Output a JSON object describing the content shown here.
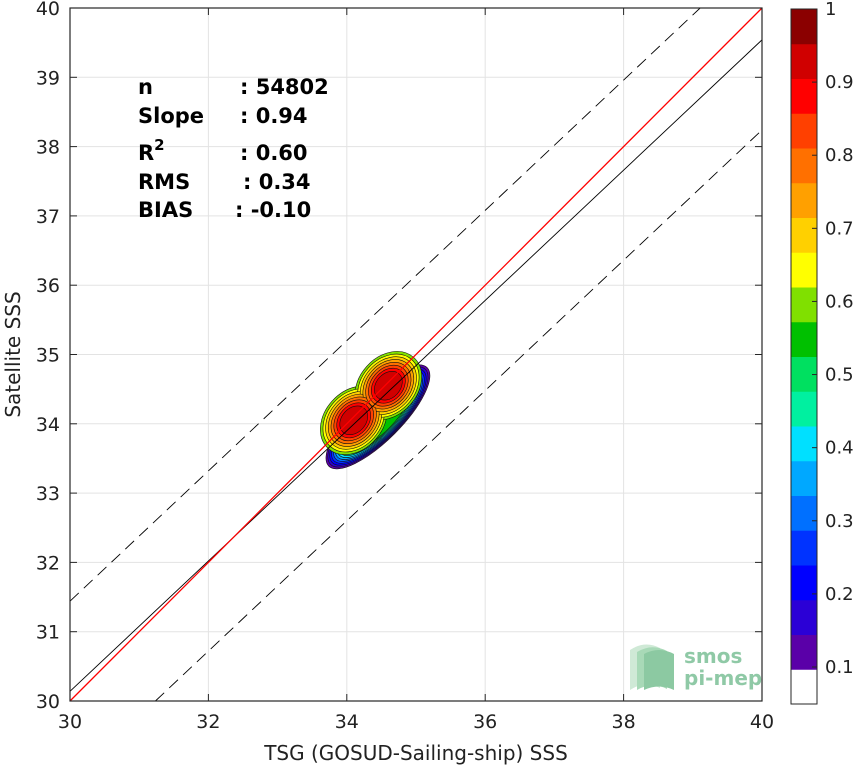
{
  "chart_data": {
    "type": "scatter",
    "subtype": "density-contour",
    "xlabel": "TSG (GOSUD-Sailing-ship) SSS",
    "ylabel": "Satellite SSS",
    "xlim": [
      30,
      40
    ],
    "ylim": [
      30,
      40
    ],
    "x_ticks": [
      "30",
      "32",
      "34",
      "36",
      "38",
      "40"
    ],
    "y_ticks": [
      "30",
      "31",
      "32",
      "33",
      "34",
      "35",
      "36",
      "37",
      "38",
      "39",
      "40"
    ],
    "grid": true,
    "stats": [
      {
        "label": "n",
        "value": ": 54802"
      },
      {
        "label": "Slope",
        "value": ": 0.94"
      },
      {
        "label": "R",
        "sup": "2",
        "value": ": 0.60"
      },
      {
        "label": "RMS",
        "value": ": 0.34"
      },
      {
        "label": "BIAS",
        "value": ": -0.10"
      }
    ],
    "reference_lines": {
      "one_to_one": {
        "slope": 1,
        "intercept": 0,
        "color": "#ff0000"
      },
      "regression": {
        "slope": 0.94,
        "intercept": 1.94,
        "color": "#000000"
      },
      "envelope_offset": 1.3
    },
    "density_peaks": [
      {
        "x": 34.1,
        "y": 34.05,
        "density": 1.0
      },
      {
        "x": 34.6,
        "y": 34.55,
        "density": 1.0
      }
    ],
    "colorbar": {
      "ticks": [
        "0.1",
        "0.2",
        "0.3",
        "0.4",
        "0.5",
        "0.6",
        "0.7",
        "0.8",
        "0.9",
        "1"
      ],
      "range": [
        0,
        1
      ],
      "colors": [
        "#ffffff",
        "#5a00a8",
        "#2b00d6",
        "#0000ff",
        "#0033ff",
        "#0070ff",
        "#00a8ff",
        "#00e0ff",
        "#00f0a0",
        "#00e060",
        "#00c000",
        "#80e000",
        "#ffff00",
        "#ffd000",
        "#ffa000",
        "#ff7000",
        "#ff4000",
        "#ff0000",
        "#d00000",
        "#8b0000"
      ]
    }
  },
  "logo": {
    "line1": "smos",
    "line2": "pi-mep"
  }
}
